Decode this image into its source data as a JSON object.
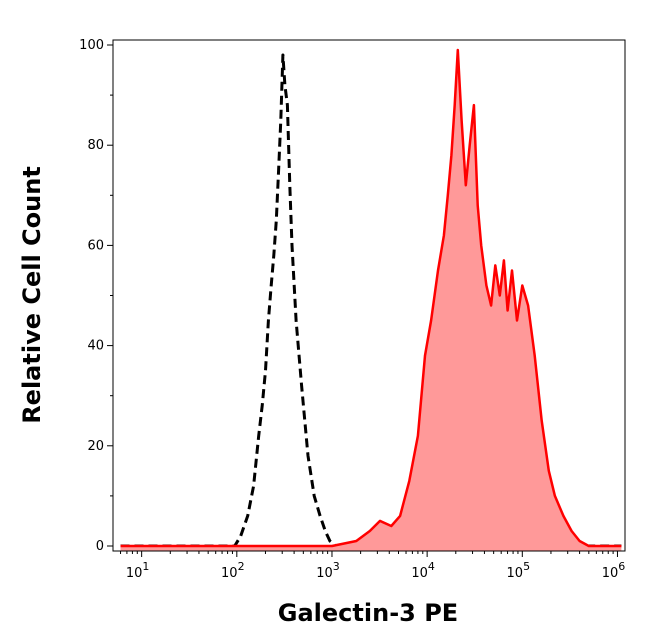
{
  "chart_data": {
    "type": "area",
    "title": "",
    "xlabel": "Galectin-3 PE",
    "ylabel": "Relative Cell Count",
    "x_scale": "log",
    "xlim": [
      5,
      1200000
    ],
    "ylim": [
      -1,
      101
    ],
    "x_tick_values": [
      10,
      100,
      1000,
      10000,
      100000,
      1000000
    ],
    "x_tick_labels": [
      {
        "base": "10",
        "exp": "1"
      },
      {
        "base": "10",
        "exp": "2"
      },
      {
        "base": "10",
        "exp": "3"
      },
      {
        "base": "10",
        "exp": "4"
      },
      {
        "base": "10",
        "exp": "5"
      },
      {
        "base": "10",
        "exp": "6"
      }
    ],
    "y_tick_values": [
      0,
      20,
      40,
      60,
      80,
      100
    ],
    "y_tick_labels": [
      "0",
      "20",
      "40",
      "60",
      "80",
      "100"
    ],
    "grid": false,
    "legend": "none",
    "series": [
      {
        "style": "dashed-black",
        "color": "#000000",
        "points": [
          [
            6,
            0
          ],
          [
            20,
            0
          ],
          [
            60,
            0
          ],
          [
            95,
            0
          ],
          [
            110,
            2
          ],
          [
            130,
            6
          ],
          [
            150,
            12
          ],
          [
            170,
            22
          ],
          [
            185,
            28
          ],
          [
            200,
            35
          ],
          [
            215,
            45
          ],
          [
            230,
            52
          ],
          [
            245,
            58
          ],
          [
            260,
            65
          ],
          [
            275,
            75
          ],
          [
            290,
            85
          ],
          [
            305,
            98
          ],
          [
            320,
            92
          ],
          [
            340,
            88
          ],
          [
            360,
            72
          ],
          [
            380,
            60
          ],
          [
            420,
            45
          ],
          [
            480,
            32
          ],
          [
            560,
            18
          ],
          [
            650,
            10
          ],
          [
            750,
            6
          ],
          [
            850,
            3
          ],
          [
            950,
            1
          ],
          [
            1100,
            0
          ],
          [
            2000,
            0
          ],
          [
            5000,
            0
          ],
          [
            1100000,
            0
          ]
        ]
      },
      {
        "style": "filled-red",
        "color": "#ff0000",
        "fill": "#ff9999",
        "points": [
          [
            6,
            0
          ],
          [
            200,
            0
          ],
          [
            500,
            0
          ],
          [
            1000,
            0
          ],
          [
            1800,
            1
          ],
          [
            2500,
            3
          ],
          [
            3200,
            5
          ],
          [
            4200,
            4
          ],
          [
            5200,
            6
          ],
          [
            6500,
            13
          ],
          [
            8000,
            22
          ],
          [
            9500,
            38
          ],
          [
            11000,
            45
          ],
          [
            13000,
            55
          ],
          [
            15000,
            62
          ],
          [
            16500,
            70
          ],
          [
            18000,
            78
          ],
          [
            19500,
            88
          ],
          [
            21000,
            99
          ],
          [
            23000,
            85
          ],
          [
            25500,
            72
          ],
          [
            28000,
            80
          ],
          [
            31000,
            88
          ],
          [
            34000,
            68
          ],
          [
            37000,
            60
          ],
          [
            42000,
            52
          ],
          [
            47000,
            48
          ],
          [
            52000,
            56
          ],
          [
            58000,
            50
          ],
          [
            64000,
            57
          ],
          [
            70000,
            47
          ],
          [
            78000,
            55
          ],
          [
            88000,
            45
          ],
          [
            100000,
            52
          ],
          [
            115000,
            48
          ],
          [
            135000,
            38
          ],
          [
            160000,
            25
          ],
          [
            190000,
            15
          ],
          [
            220000,
            10
          ],
          [
            270000,
            6
          ],
          [
            330000,
            3
          ],
          [
            400000,
            1
          ],
          [
            500000,
            0
          ],
          [
            1100000,
            0
          ]
        ]
      }
    ]
  }
}
